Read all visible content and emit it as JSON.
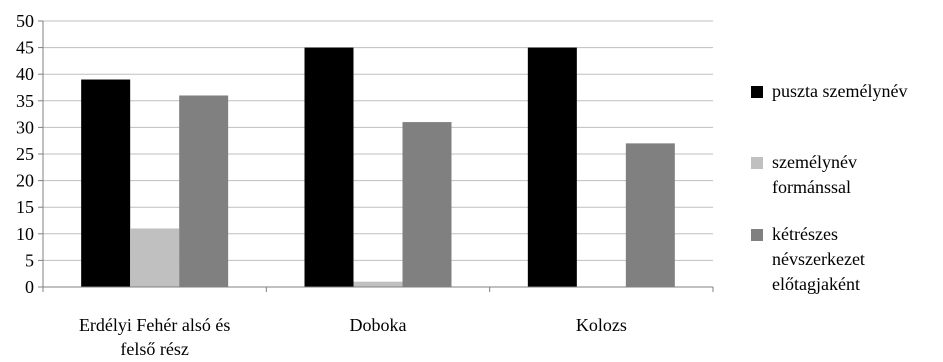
{
  "chart_data": {
    "type": "bar",
    "categories": [
      [
        "Erdélyi Fehér alsó és",
        "felső rész"
      ],
      [
        "Doboka"
      ],
      [
        "Kolozs"
      ]
    ],
    "series": [
      {
        "name": "puszta személynév",
        "legend_lines": [
          "puszta személynév"
        ],
        "color": "#000000",
        "values": [
          39,
          45,
          45
        ]
      },
      {
        "name": "személynév formánssal",
        "legend_lines": [
          "személynév",
          "formánssal"
        ],
        "color": "#c0c0c0",
        "values": [
          11,
          1,
          0
        ]
      },
      {
        "name": "kétrészes névszerkezet előtagjaként",
        "legend_lines": [
          "kétrészes",
          "névszerkezet",
          "előtagjaként"
        ],
        "color": "#808080",
        "values": [
          36,
          31,
          27
        ]
      }
    ],
    "title": "",
    "xlabel": "",
    "ylabel": "",
    "ylim": [
      0,
      50
    ],
    "yticks": [
      0,
      5,
      10,
      15,
      20,
      25,
      30,
      35,
      40,
      45,
      50
    ],
    "grid": true,
    "legend_position": "right"
  }
}
